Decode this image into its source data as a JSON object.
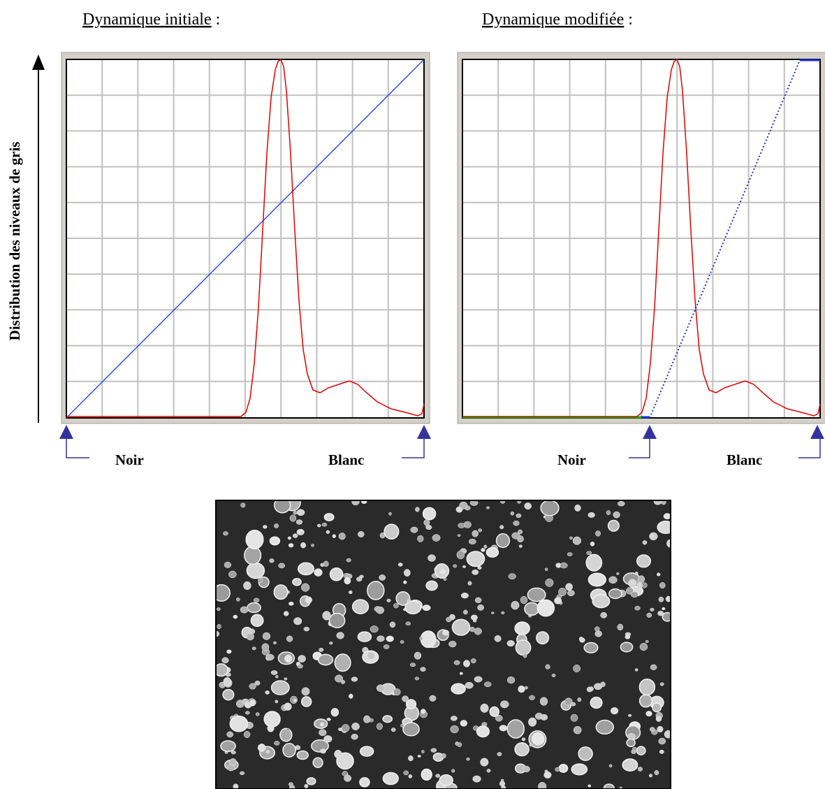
{
  "y_axis_label": "Distribution des niveaux de gris",
  "left_panel": {
    "title": "Dynamique initiale",
    "colon": ":",
    "noir": "Noir",
    "blanc": "Blanc"
  },
  "right_panel": {
    "title": "Dynamique modifiée",
    "colon": ":",
    "noir": "Noir",
    "blanc": "Blanc"
  }
}
